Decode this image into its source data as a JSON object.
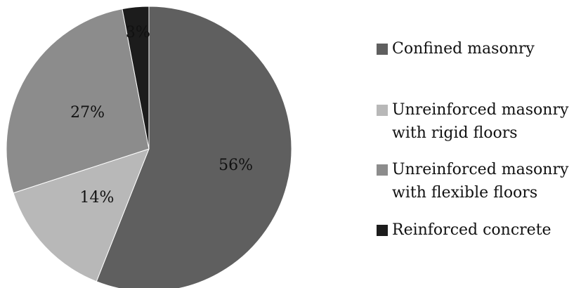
{
  "chart_data": {
    "type": "pie",
    "categories": [
      "Confined masonry",
      "Unreinforced masonry with rigid floors",
      "Unreinforced masonry with flexible floors",
      "Reinforced concrete"
    ],
    "values": [
      56,
      14,
      27,
      3
    ],
    "data_labels": [
      "56%",
      "14%",
      "27%",
      "3%"
    ],
    "colors": [
      "#5f5f5f",
      "#b8b8b8",
      "#8c8c8c",
      "#1c1c1c"
    ],
    "start_angle": "12 o'clock",
    "direction": "clockwise",
    "legend_position": "right"
  },
  "legend": {
    "items": [
      {
        "lines": [
          "Confined masonry"
        ],
        "color": "#5f5f5f"
      },
      {
        "lines": [
          "Unreinforced masonry",
          "with rigid floors"
        ],
        "color": "#b8b8b8"
      },
      {
        "lines": [
          "Unreinforced masonry",
          "with flexible floors"
        ],
        "color": "#8c8c8c"
      },
      {
        "lines": [
          "Reinforced concrete"
        ],
        "color": "#1c1c1c"
      }
    ]
  }
}
